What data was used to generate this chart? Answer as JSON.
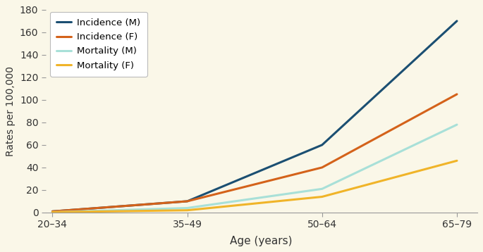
{
  "x_labels": [
    "20–34",
    "35–49",
    "50–64",
    "65–79"
  ],
  "x_positions": [
    0,
    1,
    2,
    3
  ],
  "series": [
    {
      "label": "Incidence (M)",
      "color": "#1b4f72",
      "values": [
        1.0,
        10.0,
        60.0,
        170.0
      ]
    },
    {
      "label": "Incidence (F)",
      "color": "#d4621a",
      "values": [
        1.0,
        10.0,
        40.0,
        105.0
      ]
    },
    {
      "label": "Mortality (M)",
      "color": "#a8e0d8",
      "values": [
        0.3,
        4.0,
        21.0,
        78.0
      ]
    },
    {
      "label": "Mortality (F)",
      "color": "#f0b429",
      "values": [
        0.3,
        2.0,
        14.0,
        46.0
      ]
    }
  ],
  "ylim": [
    0,
    180
  ],
  "yticks": [
    0,
    20,
    40,
    60,
    80,
    100,
    120,
    140,
    160,
    180
  ],
  "ylabel": "Rates per 100,000",
  "xlabel": "Age (years)",
  "background_color": "#faf7e8",
  "plot_bg_color": "#faf7e8",
  "legend_bg": "#ffffff",
  "linewidth": 2.2,
  "spine_color": "#999999"
}
